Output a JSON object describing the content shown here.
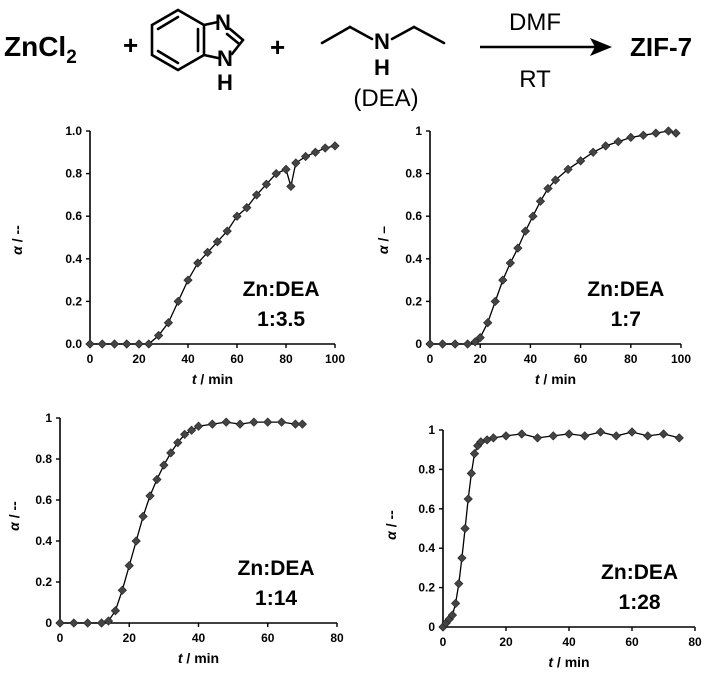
{
  "reaction": {
    "reactant1": "ZnCl",
    "reactant1_sub": "2",
    "plus1": "+",
    "plus2": "+",
    "bim_n_top": "N",
    "bim_nh_bottom": "N",
    "bim_h": "H",
    "dea_n": "N",
    "dea_h": "H",
    "dea_label": "(DEA)",
    "solvent": "DMF",
    "condition": "RT",
    "product": "ZIF-7"
  },
  "chart_data": [
    {
      "type": "scatter",
      "title": "",
      "xlabel_italic": "t",
      "xlabel_rest": " / min",
      "ylabel_italic": "α",
      "ylabel_rest": " / --",
      "annotation": [
        "Zn:DEA",
        "1:3.5"
      ],
      "xlim": [
        0,
        100
      ],
      "ylim": [
        0,
        1.0
      ],
      "xticks": [
        0,
        20,
        40,
        60,
        80,
        100
      ],
      "xtick_labels": [
        "0",
        "20",
        "40",
        "60",
        "80",
        "100"
      ],
      "yticks": [
        0,
        0.2,
        0.4,
        0.6,
        0.8,
        1.0
      ],
      "ytick_labels": [
        "0.0",
        "0.2",
        "0.4",
        "0.6",
        "0.8",
        "1.0"
      ],
      "grid": false,
      "x": [
        0,
        5,
        10,
        15,
        20,
        24,
        28,
        32,
        36,
        40,
        44,
        48,
        52,
        56,
        60,
        64,
        68,
        72,
        76,
        80,
        82,
        84,
        88,
        92,
        96,
        100
      ],
      "y": [
        0,
        0,
        0,
        0,
        0,
        0,
        0.04,
        0.1,
        0.2,
        0.3,
        0.38,
        0.43,
        0.48,
        0.53,
        0.6,
        0.64,
        0.7,
        0.75,
        0.8,
        0.82,
        0.74,
        0.85,
        0.88,
        0.9,
        0.92,
        0.93
      ]
    },
    {
      "type": "scatter",
      "title": "",
      "xlabel_italic": "t",
      "xlabel_rest": " / min",
      "ylabel_italic": "α",
      "ylabel_rest": " / –",
      "annotation": [
        "Zn:DEA",
        "1:7"
      ],
      "xlim": [
        0,
        100
      ],
      "ylim": [
        0,
        1.0
      ],
      "xticks": [
        0,
        20,
        40,
        60,
        80,
        100
      ],
      "xtick_labels": [
        "0",
        "20",
        "40",
        "60",
        "80",
        "100"
      ],
      "yticks": [
        0,
        0.2,
        0.4,
        0.6,
        0.8,
        1.0
      ],
      "ytick_labels": [
        "0",
        "0.2",
        "0.4",
        "0.6",
        "0.8",
        "1"
      ],
      "grid": false,
      "x": [
        0,
        5,
        10,
        15,
        18,
        20,
        23,
        26,
        29,
        32,
        35,
        38,
        41,
        44,
        47,
        50,
        55,
        60,
        65,
        70,
        75,
        80,
        85,
        90,
        95,
        98
      ],
      "y": [
        0,
        0,
        0,
        0,
        0.01,
        0.03,
        0.1,
        0.2,
        0.3,
        0.38,
        0.45,
        0.53,
        0.6,
        0.67,
        0.73,
        0.77,
        0.82,
        0.86,
        0.9,
        0.93,
        0.95,
        0.97,
        0.98,
        0.99,
        1.0,
        0.99
      ]
    },
    {
      "type": "scatter",
      "title": "",
      "xlabel_italic": "t",
      "xlabel_rest": " / min",
      "ylabel_italic": "α",
      "ylabel_rest": " / --",
      "annotation": [
        "Zn:DEA",
        "1:14"
      ],
      "xlim": [
        0,
        80
      ],
      "ylim": [
        0,
        1.0
      ],
      "xticks": [
        0,
        20,
        40,
        60,
        80
      ],
      "xtick_labels": [
        "0",
        "20",
        "40",
        "60",
        "80"
      ],
      "yticks": [
        0,
        0.2,
        0.4,
        0.6,
        0.8,
        1.0
      ],
      "ytick_labels": [
        "0",
        "0.2",
        "0.4",
        "0.6",
        "0.8",
        "1"
      ],
      "grid": false,
      "x": [
        0,
        4,
        8,
        12,
        14,
        16,
        18,
        20,
        22,
        24,
        26,
        28,
        30,
        32,
        34,
        36,
        38,
        40,
        44,
        48,
        52,
        56,
        60,
        64,
        68,
        70
      ],
      "y": [
        0,
        0,
        0,
        0,
        0.01,
        0.06,
        0.16,
        0.28,
        0.4,
        0.52,
        0.62,
        0.7,
        0.77,
        0.83,
        0.88,
        0.92,
        0.94,
        0.96,
        0.97,
        0.98,
        0.97,
        0.98,
        0.98,
        0.98,
        0.97,
        0.97
      ]
    },
    {
      "type": "scatter",
      "title": "",
      "xlabel_italic": "t",
      "xlabel_rest": " / min",
      "ylabel_italic": "α",
      "ylabel_rest": " / --",
      "annotation": [
        "Zn:DEA",
        "1:28"
      ],
      "xlim": [
        0,
        80
      ],
      "ylim": [
        0,
        1.0
      ],
      "xticks": [
        0,
        20,
        40,
        60,
        80
      ],
      "xtick_labels": [
        "0",
        "20",
        "40",
        "60",
        "80"
      ],
      "yticks": [
        0,
        0.2,
        0.4,
        0.6,
        0.8,
        1.0
      ],
      "ytick_labels": [
        "0",
        "0.2",
        "0.4",
        "0.6",
        "0.8",
        "1"
      ],
      "grid": false,
      "x": [
        0,
        1,
        2,
        3,
        4,
        5,
        6,
        7,
        8,
        9,
        10,
        11,
        12,
        14,
        16,
        20,
        25,
        30,
        35,
        40,
        45,
        50,
        55,
        60,
        65,
        70,
        75
      ],
      "y": [
        0,
        0.02,
        0.04,
        0.06,
        0.12,
        0.22,
        0.35,
        0.5,
        0.65,
        0.78,
        0.88,
        0.92,
        0.94,
        0.95,
        0.96,
        0.97,
        0.98,
        0.96,
        0.97,
        0.98,
        0.97,
        0.99,
        0.97,
        0.99,
        0.97,
        0.98,
        0.96
      ]
    }
  ]
}
